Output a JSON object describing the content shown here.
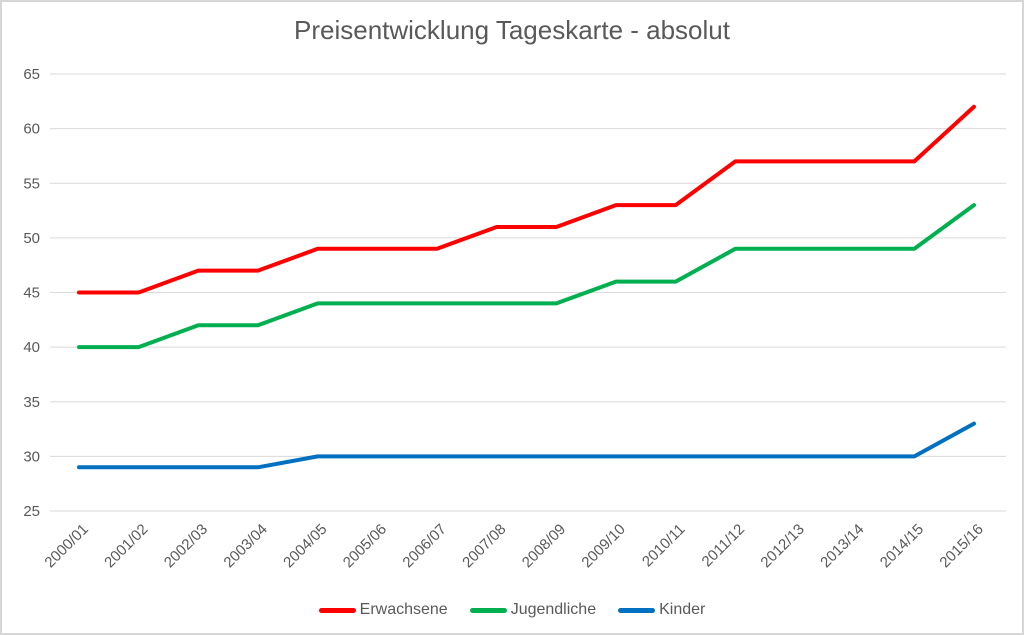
{
  "page": {
    "background_color": "#ffffff",
    "frame_border_color": "#d6d6d6"
  },
  "chart_data": {
    "type": "line",
    "title": "Preisentwicklung Tageskarte - absolut",
    "title_color": "#595959",
    "axis_label_color": "#595959",
    "gridline_color": "#d9d9d9",
    "grid": true,
    "xlabel": "",
    "ylabel": "",
    "ylim": [
      25,
      65
    ],
    "ytick_step": 5,
    "ytick_labels": [
      "25",
      "30",
      "35",
      "40",
      "45",
      "50",
      "55",
      "60",
      "65"
    ],
    "x_labels_rotation_degrees": -45,
    "categories": [
      "2000/01",
      "2001/02",
      "2002/03",
      "2003/04",
      "2004/05",
      "2005/06",
      "2006/07",
      "2007/08",
      "2008/09",
      "2009/10",
      "2010/11",
      "2011/12",
      "2012/13",
      "2013/14",
      "2014/15",
      "2015/16"
    ],
    "series": [
      {
        "name": "Erwachsene",
        "color": "#ff0000",
        "values": [
          45,
          45,
          47,
          47,
          49,
          49,
          49,
          51,
          51,
          53,
          53,
          57,
          57,
          57,
          57,
          62
        ]
      },
      {
        "name": "Jugendliche",
        "color": "#00b050",
        "values": [
          40,
          40,
          42,
          42,
          44,
          44,
          44,
          44,
          44,
          46,
          46,
          49,
          49,
          49,
          49,
          53
        ]
      },
      {
        "name": "Kinder",
        "color": "#0070c0",
        "values": [
          29,
          29,
          29,
          29,
          30,
          30,
          30,
          30,
          30,
          30,
          30,
          30,
          30,
          30,
          30,
          33
        ]
      }
    ],
    "legend_position": "bottom",
    "legend_labels": [
      "Erwachsene",
      "Jugendliche",
      "Kinder"
    ]
  }
}
